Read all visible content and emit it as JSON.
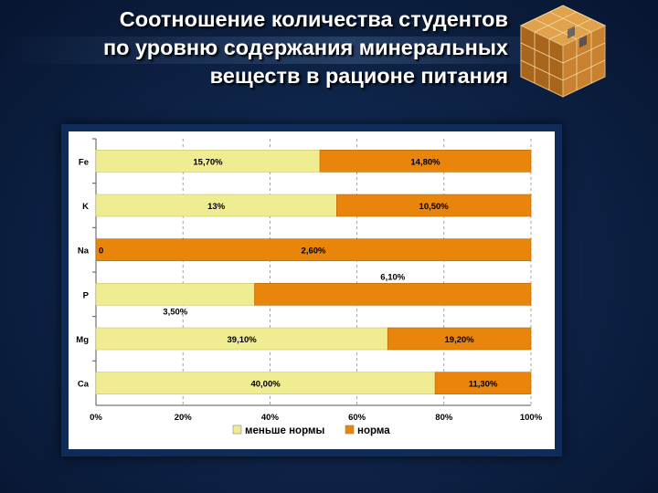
{
  "slide": {
    "title_lines": [
      "Соотношение количества студентов",
      "по уровню содержания минеральных",
      "веществ в рационе питания"
    ]
  },
  "chart_data": {
    "type": "bar",
    "orientation": "horizontal",
    "stacked": "percent",
    "categories": [
      "Fe",
      "K",
      "Na",
      "P",
      "Mg",
      "Ca"
    ],
    "series": [
      {
        "name": "меньше нормы",
        "color": "#f0ec92",
        "values": [
          15.7,
          13,
          0,
          3.5,
          39.1,
          40
        ],
        "labels": [
          "15,70%",
          "13%",
          "0",
          "3,50%",
          "39,10%",
          "40,00%"
        ]
      },
      {
        "name": "норма",
        "color": "#e8850a",
        "values": [
          14.8,
          10.5,
          2.6,
          6.1,
          19.2,
          11.3
        ],
        "labels": [
          "14,80%",
          "10,50%",
          "2,60%",
          "6,10%",
          "19,20%",
          "11,30%"
        ]
      }
    ],
    "x_ticks": [
      "0%",
      "20%",
      "40%",
      "60%",
      "80%",
      "100%"
    ],
    "xlim": [
      0,
      100
    ],
    "grid": "vertical dashed",
    "legend_position": "bottom"
  }
}
